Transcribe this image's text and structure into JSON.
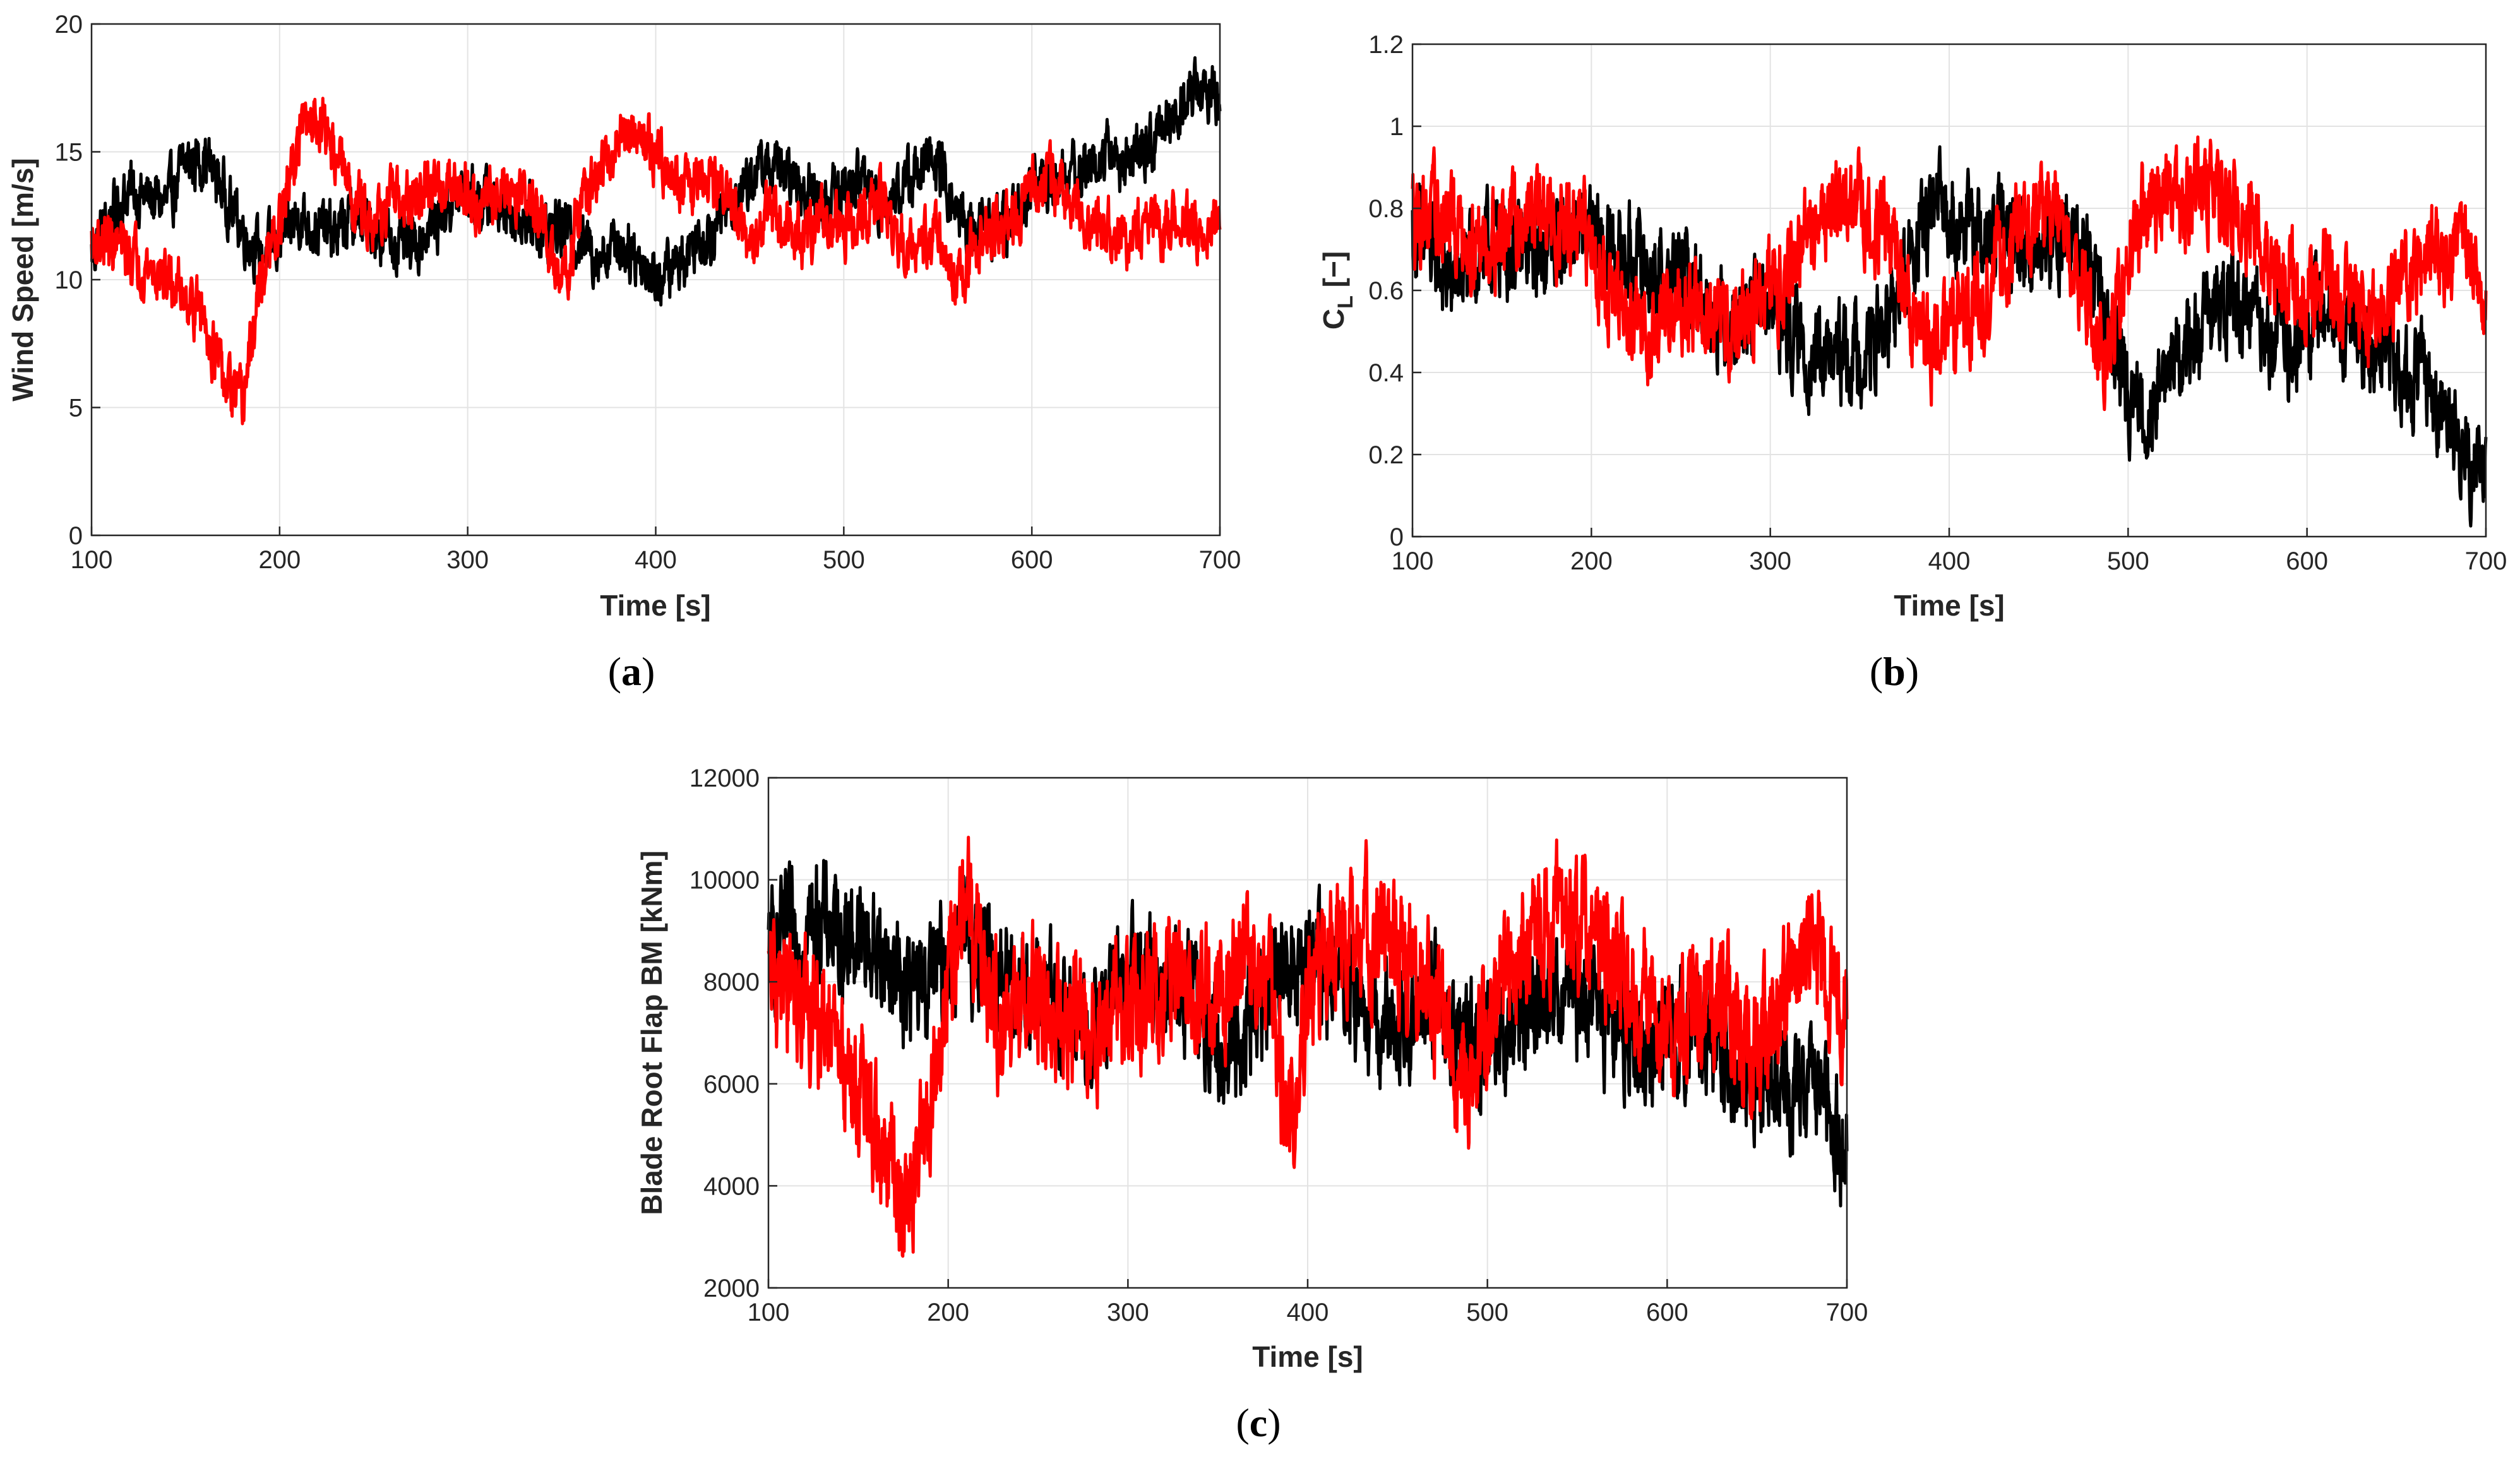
{
  "chart_data": [
    {
      "type": "line",
      "panel_label": "a",
      "xlabel": "Time [s]",
      "ylabel": "Wind Speed [m/s]",
      "xlim": [
        100,
        700
      ],
      "ylim": [
        0,
        20
      ],
      "xticks": [
        100,
        200,
        300,
        400,
        500,
        600,
        700
      ],
      "yticks": [
        0,
        5,
        10,
        15,
        20
      ],
      "grid": true,
      "series": [
        {
          "name": "black",
          "color": "#000000",
          "noise": 0.9,
          "x": [
            100,
            110,
            120,
            130,
            140,
            150,
            160,
            170,
            180,
            190,
            200,
            210,
            220,
            230,
            240,
            250,
            260,
            270,
            280,
            290,
            300,
            310,
            320,
            330,
            340,
            350,
            360,
            370,
            380,
            390,
            400,
            410,
            420,
            430,
            440,
            450,
            460,
            470,
            480,
            490,
            500,
            510,
            520,
            530,
            540,
            550,
            560,
            570,
            580,
            590,
            600,
            610,
            620,
            630,
            640,
            650,
            660,
            670,
            680,
            690,
            700
          ],
          "y": [
            11.0,
            12.5,
            13.5,
            13.2,
            13.0,
            14.5,
            14.8,
            13.5,
            12.0,
            11.0,
            11.5,
            12.5,
            12.0,
            11.8,
            12.5,
            12.0,
            11.5,
            11.2,
            12.0,
            13.0,
            13.5,
            13.0,
            12.8,
            12.5,
            12.0,
            12.0,
            11.5,
            11.0,
            11.5,
            11.0,
            10.0,
            10.5,
            11.5,
            12.0,
            13.0,
            14.0,
            14.5,
            14.0,
            13.5,
            13.0,
            13.5,
            14.0,
            13.0,
            13.5,
            14.5,
            14.5,
            12.5,
            12.0,
            12.0,
            12.5,
            13.5,
            14.0,
            14.0,
            14.5,
            15.0,
            14.5,
            15.0,
            16.0,
            17.0,
            17.5,
            17.0
          ]
        },
        {
          "name": "red",
          "color": "#ff0000",
          "noise": 0.9,
          "x": [
            100,
            110,
            120,
            130,
            140,
            150,
            160,
            170,
            180,
            190,
            200,
            210,
            220,
            230,
            240,
            250,
            260,
            270,
            280,
            290,
            300,
            310,
            320,
            330,
            340,
            350,
            360,
            370,
            380,
            390,
            400,
            410,
            420,
            430,
            440,
            450,
            460,
            470,
            480,
            490,
            500,
            510,
            520,
            530,
            540,
            550,
            560,
            570,
            580,
            590,
            600,
            610,
            620,
            630,
            640,
            650,
            660,
            670,
            680,
            690,
            700
          ],
          "y": [
            11.5,
            11.5,
            11.0,
            10.5,
            10.0,
            9.5,
            8.5,
            6.0,
            5.0,
            10.0,
            12.0,
            15.5,
            16.5,
            15.0,
            13.0,
            12.5,
            13.0,
            13.0,
            13.5,
            14.0,
            13.5,
            13.0,
            13.5,
            13.5,
            12.0,
            9.5,
            13.0,
            14.0,
            15.5,
            16.0,
            15.0,
            14.0,
            13.5,
            14.0,
            13.0,
            11.0,
            12.5,
            12.0,
            11.5,
            12.5,
            12.0,
            12.5,
            13.0,
            11.5,
            11.0,
            12.0,
            9.5,
            11.5,
            12.0,
            12.5,
            13.5,
            14.0,
            13.0,
            12.5,
            12.0,
            11.0,
            12.5,
            12.0,
            12.5,
            11.5,
            12.5
          ]
        }
      ]
    },
    {
      "type": "line",
      "panel_label": "b",
      "xlabel": "Time [s]",
      "ylabel_main": "C",
      "ylabel_sub": "L",
      "ylabel_suffix": " [−]",
      "xlim": [
        100,
        700
      ],
      "ylim": [
        0,
        1.2
      ],
      "xticks": [
        100,
        200,
        300,
        400,
        500,
        600,
        700
      ],
      "yticks": [
        0,
        0.2,
        0.4,
        0.6,
        0.8,
        1,
        1.2
      ],
      "grid": true,
      "series": [
        {
          "name": "black",
          "color": "#000000",
          "noise": 0.09,
          "x": [
            100,
            110,
            120,
            130,
            140,
            150,
            160,
            170,
            180,
            190,
            200,
            210,
            220,
            230,
            240,
            250,
            260,
            270,
            280,
            290,
            300,
            310,
            320,
            330,
            340,
            350,
            360,
            370,
            380,
            390,
            400,
            410,
            420,
            430,
            440,
            450,
            460,
            470,
            480,
            490,
            500,
            510,
            520,
            530,
            540,
            550,
            560,
            570,
            580,
            590,
            600,
            610,
            620,
            630,
            640,
            650,
            660,
            670,
            680,
            690,
            700
          ],
          "y": [
            0.75,
            0.7,
            0.62,
            0.65,
            0.7,
            0.72,
            0.68,
            0.7,
            0.72,
            0.74,
            0.72,
            0.7,
            0.68,
            0.66,
            0.62,
            0.64,
            0.6,
            0.55,
            0.52,
            0.55,
            0.58,
            0.5,
            0.45,
            0.42,
            0.44,
            0.45,
            0.48,
            0.55,
            0.7,
            0.78,
            0.8,
            0.75,
            0.7,
            0.75,
            0.72,
            0.7,
            0.72,
            0.74,
            0.65,
            0.5,
            0.35,
            0.3,
            0.4,
            0.45,
            0.5,
            0.55,
            0.58,
            0.55,
            0.5,
            0.45,
            0.5,
            0.55,
            0.52,
            0.48,
            0.45,
            0.42,
            0.4,
            0.35,
            0.3,
            0.2,
            0.15
          ]
        },
        {
          "name": "red",
          "color": "#ff0000",
          "noise": 0.09,
          "x": [
            100,
            110,
            120,
            130,
            140,
            150,
            160,
            170,
            180,
            190,
            200,
            210,
            220,
            230,
            240,
            250,
            260,
            270,
            280,
            290,
            300,
            310,
            320,
            330,
            340,
            350,
            360,
            370,
            380,
            390,
            400,
            410,
            420,
            430,
            440,
            450,
            460,
            470,
            480,
            490,
            500,
            510,
            520,
            530,
            540,
            550,
            560,
            570,
            580,
            590,
            600,
            610,
            620,
            630,
            640,
            650,
            660,
            670,
            680,
            690,
            700
          ],
          "y": [
            0.8,
            0.78,
            0.76,
            0.74,
            0.72,
            0.75,
            0.78,
            0.8,
            0.76,
            0.74,
            0.72,
            0.6,
            0.52,
            0.5,
            0.55,
            0.58,
            0.55,
            0.5,
            0.52,
            0.55,
            0.6,
            0.65,
            0.72,
            0.8,
            0.82,
            0.8,
            0.76,
            0.7,
            0.55,
            0.45,
            0.5,
            0.55,
            0.6,
            0.7,
            0.75,
            0.78,
            0.8,
            0.7,
            0.5,
            0.45,
            0.7,
            0.8,
            0.82,
            0.8,
            0.85,
            0.82,
            0.8,
            0.75,
            0.7,
            0.62,
            0.6,
            0.62,
            0.58,
            0.52,
            0.5,
            0.6,
            0.65,
            0.68,
            0.7,
            0.72,
            0.58
          ]
        }
      ]
    },
    {
      "type": "line",
      "panel_label": "c",
      "xlabel": "Time [s]",
      "ylabel": "Blade Root Flap BM [kNm]",
      "xlim": [
        100,
        700
      ],
      "ylim": [
        2000,
        12000
      ],
      "xticks": [
        100,
        200,
        300,
        400,
        500,
        600,
        700
      ],
      "yticks": [
        2000,
        4000,
        6000,
        8000,
        10000,
        12000
      ],
      "grid": true,
      "series": [
        {
          "name": "black",
          "color": "#000000",
          "noise": 900,
          "x": [
            100,
            110,
            120,
            130,
            140,
            150,
            160,
            170,
            180,
            190,
            200,
            210,
            220,
            230,
            240,
            250,
            260,
            270,
            280,
            290,
            300,
            310,
            320,
            330,
            340,
            350,
            360,
            370,
            380,
            390,
            400,
            410,
            420,
            430,
            440,
            450,
            460,
            470,
            480,
            490,
            500,
            510,
            520,
            530,
            540,
            550,
            560,
            570,
            580,
            590,
            600,
            610,
            620,
            630,
            640,
            650,
            660,
            670,
            680,
            690,
            700
          ],
          "y": [
            8500,
            8800,
            9000,
            9200,
            9000,
            8800,
            8600,
            8200,
            7800,
            8000,
            8500,
            8800,
            8500,
            8200,
            8000,
            7800,
            7500,
            7200,
            7000,
            7500,
            8000,
            8200,
            8000,
            7800,
            7600,
            6500,
            6800,
            7500,
            7800,
            8200,
            8500,
            8200,
            8000,
            7500,
            7000,
            7200,
            7500,
            7800,
            7200,
            6800,
            6500,
            7000,
            7500,
            7800,
            7800,
            7600,
            7400,
            7200,
            7000,
            6800,
            7000,
            7200,
            6800,
            6500,
            6200,
            6000,
            6200,
            6000,
            5800,
            5200,
            4800
          ]
        },
        {
          "name": "red",
          "color": "#ff0000",
          "noise": 1000,
          "x": [
            100,
            110,
            120,
            130,
            140,
            150,
            160,
            170,
            180,
            190,
            200,
            210,
            220,
            230,
            240,
            250,
            260,
            270,
            280,
            290,
            300,
            310,
            320,
            330,
            340,
            350,
            360,
            370,
            380,
            390,
            400,
            410,
            420,
            430,
            440,
            450,
            460,
            470,
            480,
            490,
            500,
            510,
            520,
            530,
            540,
            550,
            560,
            570,
            580,
            590,
            600,
            610,
            620,
            630,
            640,
            650,
            660,
            670,
            680,
            690,
            700
          ],
          "y": [
            8000,
            7800,
            7500,
            7000,
            6500,
            6000,
            5000,
            4000,
            3800,
            5500,
            8000,
            9500,
            8500,
            7000,
            7500,
            7800,
            7500,
            7200,
            7000,
            7500,
            7500,
            7800,
            8000,
            8200,
            8000,
            7500,
            8000,
            8500,
            7500,
            5000,
            7500,
            8500,
            8500,
            9000,
            8800,
            8500,
            8000,
            7500,
            6500,
            6000,
            7000,
            8000,
            8500,
            9000,
            9200,
            9000,
            8800,
            8500,
            8000,
            7500,
            7000,
            7200,
            7500,
            7800,
            7000,
            6500,
            7500,
            8000,
            8500,
            8000,
            7500
          ]
        }
      ]
    }
  ]
}
